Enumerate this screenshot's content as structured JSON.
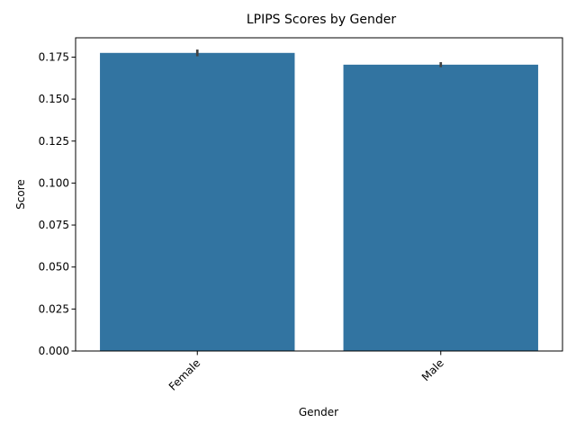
{
  "chart_data": {
    "type": "bar",
    "title": "LPIPS Scores by Gender",
    "xlabel": "Gender",
    "ylabel": "Score",
    "categories": [
      "Female",
      "Male"
    ],
    "values": [
      0.1775,
      0.1705
    ],
    "error_low": [
      0.1755,
      0.169
    ],
    "error_high": [
      0.1795,
      0.172
    ],
    "ylim": [
      0,
      0.1865
    ],
    "yticks": [
      0.0,
      0.025,
      0.05,
      0.075,
      0.1,
      0.125,
      0.15,
      0.175
    ],
    "ytick_labels": [
      "0.000",
      "0.025",
      "0.050",
      "0.075",
      "0.100",
      "0.125",
      "0.150",
      "0.175"
    ],
    "grid": false,
    "bar_color": "#3274a1",
    "error_color": "#424242"
  }
}
